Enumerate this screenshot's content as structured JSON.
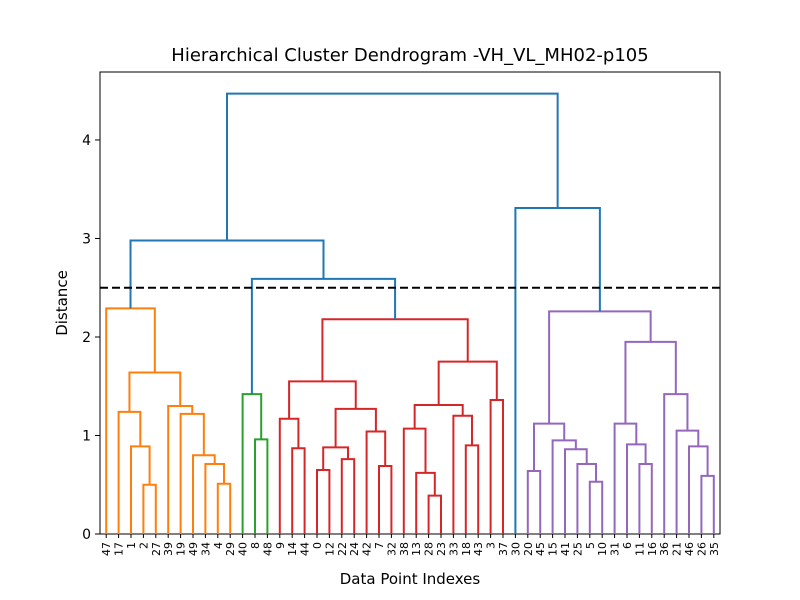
{
  "chart_data": {
    "type": "dendrogram",
    "title": "Hierarchical Cluster Dendrogram -VH_VL_MH02-p105",
    "x_label": "Data Point Indexes",
    "y_label": "Distance",
    "ylim": [
      0,
      4.69
    ],
    "yticks": [
      0,
      1,
      2,
      3,
      4
    ],
    "threshold": 2.5,
    "tree": {
      "height": 4.47,
      "color": "#1f77b4",
      "children": [
        {
          "height": 2.98,
          "color": "#1f77b4",
          "children": [
            {
              "height": 2.29,
              "color": "#ff7f0e",
              "children": [
                "47",
                {
                  "height": 1.64,
                  "color": "#ff7f0e",
                  "children": [
                    {
                      "height": 1.24,
                      "color": "#ff7f0e",
                      "children": [
                        "17",
                        {
                          "height": 0.89,
                          "color": "#ff7f0e",
                          "children": [
                            "1",
                            {
                              "height": 0.5,
                              "color": "#ff7f0e",
                              "children": [
                                "2",
                                "27"
                              ]
                            }
                          ]
                        }
                      ]
                    },
                    {
                      "height": 1.3,
                      "color": "#ff7f0e",
                      "children": [
                        "39",
                        {
                          "height": 1.22,
                          "color": "#ff7f0e",
                          "children": [
                            "19",
                            {
                              "height": 0.8,
                              "color": "#ff7f0e",
                              "children": [
                                "49",
                                {
                                  "height": 0.71,
                                  "color": "#ff7f0e",
                                  "children": [
                                    "34",
                                    {
                                      "height": 0.51,
                                      "color": "#ff7f0e",
                                      "children": [
                                        "4",
                                        "29"
                                      ]
                                    }
                                  ]
                                }
                              ]
                            }
                          ]
                        }
                      ]
                    }
                  ]
                }
              ]
            },
            {
              "height": 2.59,
              "color": "#1f77b4",
              "children": [
                {
                  "height": 1.42,
                  "color": "#2ca02c",
                  "children": [
                    "40",
                    {
                      "height": 0.96,
                      "color": "#2ca02c",
                      "children": [
                        "8",
                        "48"
                      ]
                    }
                  ]
                },
                {
                  "height": 2.18,
                  "color": "#d62728",
                  "children": [
                    {
                      "height": 1.55,
                      "color": "#d62728",
                      "children": [
                        {
                          "height": 1.17,
                          "color": "#d62728",
                          "children": [
                            "9",
                            {
                              "height": 0.87,
                              "color": "#d62728",
                              "children": [
                                "14",
                                "44"
                              ]
                            }
                          ]
                        },
                        {
                          "height": 1.27,
                          "color": "#d62728",
                          "children": [
                            {
                              "height": 0.88,
                              "color": "#d62728",
                              "children": [
                                {
                                  "height": 0.65,
                                  "color": "#d62728",
                                  "children": [
                                    "0",
                                    "12"
                                  ]
                                },
                                {
                                  "height": 0.76,
                                  "color": "#d62728",
                                  "children": [
                                    "22",
                                    "24"
                                  ]
                                }
                              ]
                            },
                            {
                              "height": 1.04,
                              "color": "#d62728",
                              "children": [
                                "42",
                                {
                                  "height": 0.69,
                                  "color": "#d62728",
                                  "children": [
                                    "7",
                                    "32"
                                  ]
                                }
                              ]
                            }
                          ]
                        }
                      ]
                    },
                    {
                      "height": 1.75,
                      "color": "#d62728",
                      "children": [
                        {
                          "height": 1.31,
                          "color": "#d62728",
                          "children": [
                            {
                              "height": 1.07,
                              "color": "#d62728",
                              "children": [
                                "38",
                                {
                                  "height": 0.62,
                                  "color": "#d62728",
                                  "children": [
                                    "13",
                                    {
                                      "height": 0.39,
                                      "color": "#d62728",
                                      "children": [
                                        "28",
                                        "23"
                                      ]
                                    }
                                  ]
                                }
                              ]
                            },
                            {
                              "height": 1.2,
                              "color": "#d62728",
                              "children": [
                                "33",
                                {
                                  "height": 0.9,
                                  "color": "#d62728",
                                  "children": [
                                    "18",
                                    "43"
                                  ]
                                }
                              ]
                            }
                          ]
                        },
                        {
                          "height": 1.36,
                          "color": "#d62728",
                          "children": [
                            "3",
                            "37"
                          ]
                        }
                      ]
                    }
                  ]
                }
              ]
            }
          ]
        },
        {
          "height": 3.31,
          "color": "#1f77b4",
          "children": [
            "30",
            {
              "height": 2.26,
              "color": "#9467bd",
              "children": [
                {
                  "height": 1.12,
                  "color": "#9467bd",
                  "children": [
                    {
                      "height": 0.64,
                      "color": "#9467bd",
                      "children": [
                        "20",
                        "45"
                      ]
                    },
                    {
                      "height": 0.95,
                      "color": "#9467bd",
                      "children": [
                        "15",
                        {
                          "height": 0.86,
                          "color": "#9467bd",
                          "children": [
                            "41",
                            {
                              "height": 0.71,
                              "color": "#9467bd",
                              "children": [
                                "25",
                                {
                                  "height": 0.53,
                                  "color": "#9467bd",
                                  "children": [
                                    "5",
                                    "10"
                                  ]
                                }
                              ]
                            }
                          ]
                        }
                      ]
                    }
                  ]
                },
                {
                  "height": 1.95,
                  "color": "#9467bd",
                  "children": [
                    {
                      "height": 1.12,
                      "color": "#9467bd",
                      "children": [
                        "31",
                        {
                          "height": 0.91,
                          "color": "#9467bd",
                          "children": [
                            "6",
                            {
                              "height": 0.71,
                              "color": "#9467bd",
                              "children": [
                                "11",
                                "16"
                              ]
                            }
                          ]
                        }
                      ]
                    },
                    {
                      "height": 1.42,
                      "color": "#9467bd",
                      "children": [
                        "36",
                        {
                          "height": 1.05,
                          "color": "#9467bd",
                          "children": [
                            "21",
                            {
                              "height": 0.89,
                              "color": "#9467bd",
                              "children": [
                                "46",
                                {
                                  "height": 0.59,
                                  "color": "#9467bd",
                                  "children": [
                                    "26",
                                    "35"
                                  ]
                                }
                              ]
                            }
                          ]
                        }
                      ]
                    }
                  ]
                }
              ]
            }
          ]
        }
      ]
    }
  }
}
